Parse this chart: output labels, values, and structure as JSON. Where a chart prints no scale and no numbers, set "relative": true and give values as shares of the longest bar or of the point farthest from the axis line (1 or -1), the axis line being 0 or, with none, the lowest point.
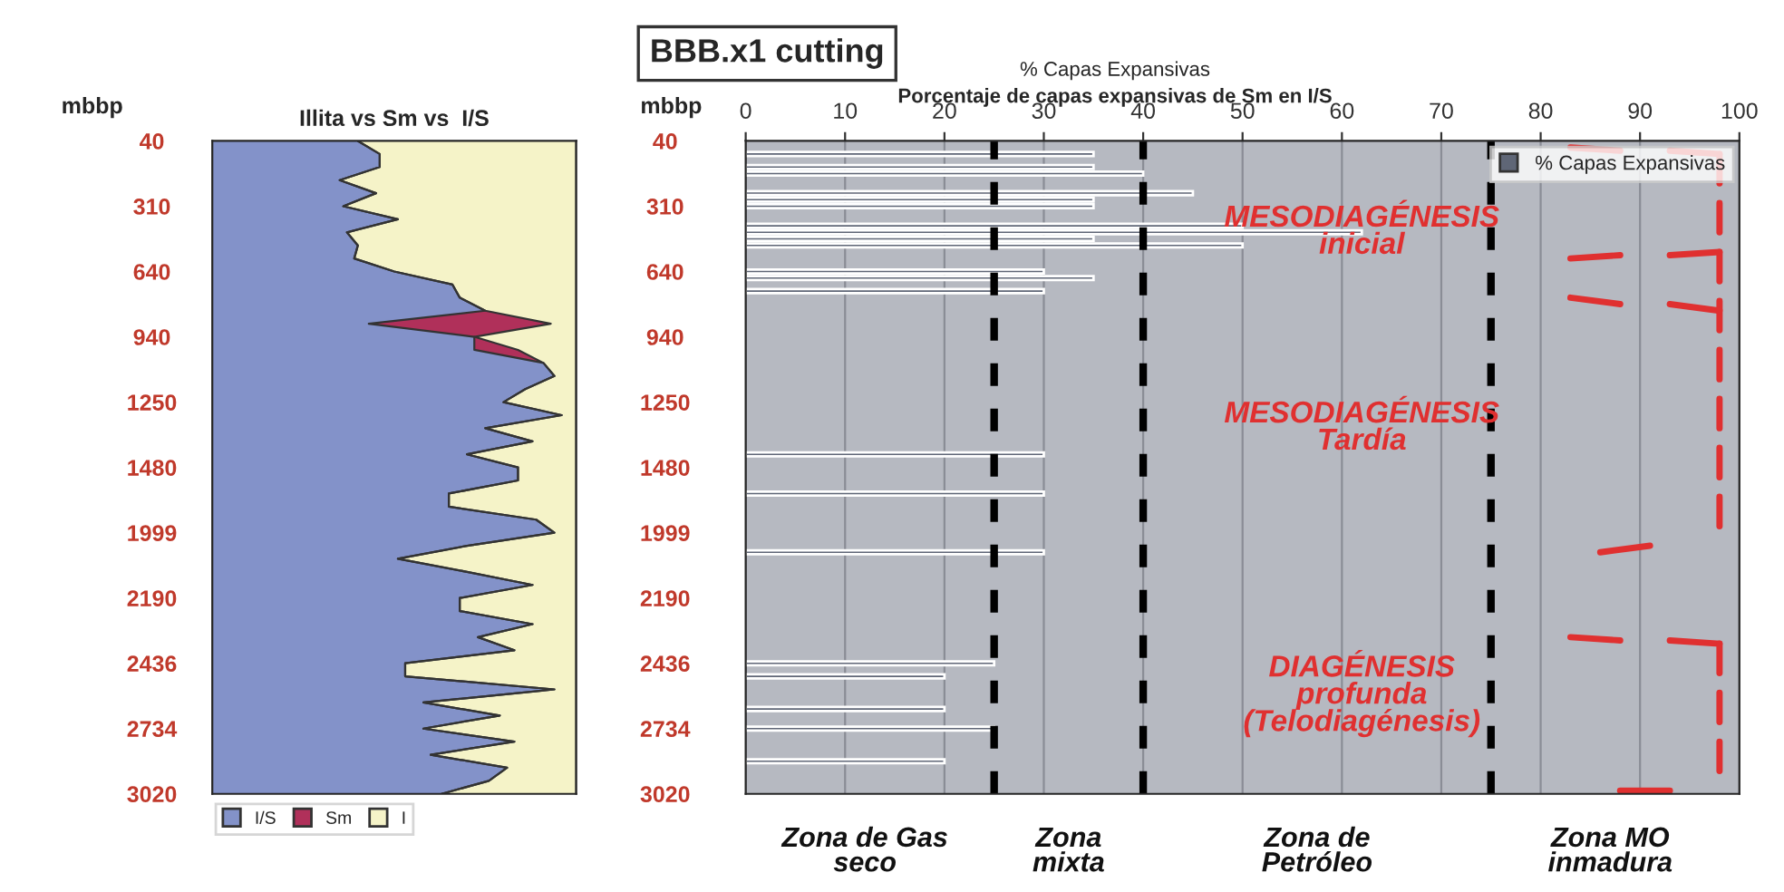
{
  "chart_data": [
    {
      "type": "area",
      "orientation": "horizontal",
      "stacked": true,
      "relative": true,
      "title": "Illita vs Sm vs  I/S",
      "ylabel": "mbbp",
      "legend": "bottom left",
      "tick_labels": "y",
      "categories": [
        "40",
        null,
        null,
        null,
        null,
        "310",
        null,
        null,
        null,
        null,
        "640",
        null,
        null,
        null,
        null,
        "940",
        null,
        null,
        null,
        null,
        "1250",
        null,
        null,
        null,
        null,
        "1480",
        null,
        null,
        null,
        null,
        "1999",
        null,
        null,
        null,
        null,
        "2190",
        null,
        null,
        null,
        null,
        "2436",
        null,
        null,
        null,
        null,
        "2734",
        null,
        null,
        null,
        null,
        "3020"
      ],
      "series": [
        {
          "name": "I/S",
          "color": "#8392c9",
          "values": [
            0.4,
            0.46,
            0.46,
            0.35,
            0.45,
            0.36,
            0.51,
            0.37,
            0.4,
            0.39,
            0.5,
            0.66,
            0.68,
            0.75,
            0.43,
            0.72,
            0.72,
            0.91,
            0.94,
            0.86,
            0.8,
            0.96,
            0.75,
            0.88,
            0.7,
            0.84,
            0.84,
            0.65,
            0.65,
            0.89,
            0.94,
            0.7,
            0.51,
            0.7,
            0.88,
            0.68,
            0.68,
            0.88,
            0.73,
            0.83,
            0.53,
            0.53,
            0.94,
            0.58,
            0.79,
            0.58,
            0.83,
            0.6,
            0.81,
            0.76,
            0.63
          ]
        },
        {
          "name": "Sm",
          "color": "#b0305a",
          "values": [
            0,
            0,
            0,
            0,
            0,
            0,
            0,
            0,
            0,
            0,
            0,
            0,
            0,
            0,
            0.5,
            0,
            0.12,
            0,
            0,
            0,
            0,
            0,
            0,
            0,
            0,
            0,
            0,
            0,
            0,
            0,
            0,
            0,
            0,
            0,
            0,
            0,
            0,
            0,
            0,
            0,
            0,
            0,
            0,
            0,
            0,
            0,
            0,
            0,
            0,
            0,
            0
          ]
        },
        {
          "name": "I",
          "color": "#f5f3c8",
          "values": [
            0.6,
            0.54,
            0.54,
            0.65,
            0.55,
            0.64,
            0.49,
            0.63,
            0.6,
            0.61,
            0.5,
            0.34,
            0.32,
            0.25,
            0.07,
            0.28,
            0.16,
            0.09,
            0.06,
            0.14,
            0.2,
            0.04,
            0.25,
            0.12,
            0.3,
            0.16,
            0.16,
            0.35,
            0.35,
            0.11,
            0.06,
            0.3,
            0.49,
            0.3,
            0.12,
            0.32,
            0.32,
            0.12,
            0.27,
            0.17,
            0.47,
            0.47,
            0.06,
            0.42,
            0.21,
            0.42,
            0.17,
            0.4,
            0.19,
            0.24,
            0.37
          ]
        }
      ]
    },
    {
      "type": "bar",
      "orientation": "horizontal",
      "title": "BBB.x1 cutting",
      "subtitle": "% Capas Expansivas",
      "xlabel": "Porcentaje de capas expansivas de Sm en I/S",
      "ylabel": "mbbp",
      "grid": "x",
      "legend": "top right",
      "xlim": [
        0,
        100
      ],
      "xticks": [
        0,
        10,
        20,
        30,
        40,
        50,
        60,
        70,
        80,
        90,
        100
      ],
      "categories": [
        "40",
        null,
        null,
        null,
        null,
        null,
        null,
        null,
        null,
        null,
        "310",
        null,
        null,
        null,
        null,
        null,
        null,
        null,
        null,
        null,
        "640",
        null,
        null,
        null,
        null,
        null,
        null,
        null,
        null,
        null,
        "940",
        null,
        null,
        null,
        null,
        null,
        null,
        null,
        null,
        null,
        "1250",
        null,
        null,
        null,
        null,
        null,
        null,
        null,
        null,
        null,
        "1480",
        null,
        null,
        null,
        null,
        null,
        null,
        null,
        null,
        null,
        "1999",
        null,
        null,
        null,
        null,
        null,
        null,
        null,
        null,
        null,
        "2190",
        null,
        null,
        null,
        null,
        null,
        null,
        null,
        null,
        null,
        "2436",
        null,
        null,
        null,
        null,
        null,
        null,
        null,
        null,
        null,
        "2734",
        null,
        null,
        null,
        null,
        null,
        null,
        null,
        null,
        null,
        "3020"
      ],
      "series": [
        {
          "name": "% Capas Expansivas",
          "color": "#5f6676",
          "values": [
            null,
            null,
            35,
            null,
            35,
            40,
            null,
            null,
            45,
            35,
            35,
            null,
            null,
            50,
            62,
            35,
            50,
            null,
            null,
            null,
            30,
            35,
            null,
            30,
            null,
            null,
            null,
            null,
            null,
            null,
            null,
            null,
            null,
            null,
            null,
            null,
            null,
            null,
            null,
            null,
            null,
            null,
            null,
            null,
            null,
            null,
            null,
            null,
            30,
            null,
            null,
            null,
            null,
            null,
            30,
            null,
            null,
            null,
            null,
            null,
            null,
            null,
            null,
            30,
            null,
            null,
            null,
            null,
            null,
            null,
            null,
            null,
            null,
            null,
            null,
            null,
            null,
            null,
            null,
            null,
            25,
            null,
            20,
            null,
            null,
            null,
            null,
            20,
            null,
            null,
            25,
            null,
            null,
            null,
            null,
            20,
            null,
            null,
            null,
            null,
            null
          ]
        }
      ],
      "ref_lines": [
        {
          "axis": "x",
          "value": 25,
          "color": "#000000",
          "line_style": "dashed"
        },
        {
          "axis": "x",
          "value": 40,
          "color": "#000000",
          "line_style": "dashed"
        },
        {
          "axis": "x",
          "value": 75,
          "color": "#000000",
          "line_style": "dashed"
        }
      ],
      "annotations": [
        "MESODIAGÉNESIS\ninicial",
        "MESODIAGÉNESIS\nTardía",
        "DIAGÉNESIS\nprofunda\n(Telodiagénesis)",
        "Zona de Gas\nseco",
        "Zona\nmixta",
        "Zona de\nPetróleo",
        "Zona MO\ninmadura"
      ]
    }
  ]
}
